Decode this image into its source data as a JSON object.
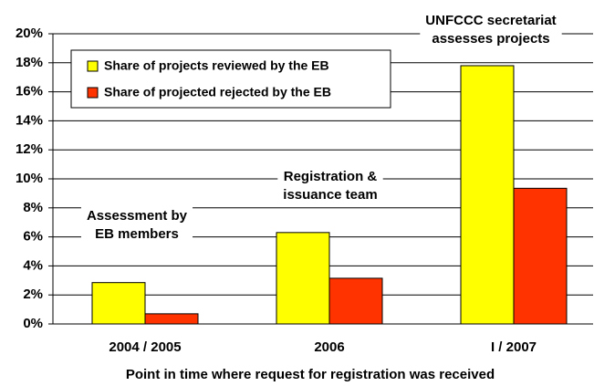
{
  "chart_data": {
    "type": "bar",
    "x_label": "Point in time where request for registration was received",
    "categories": [
      "2004 / 2005",
      "2006",
      "I / 2007"
    ],
    "series": [
      {
        "name": "Share of projects reviewed by the EB",
        "color": "#ffff00",
        "values": [
          2.85,
          6.3,
          17.8
        ]
      },
      {
        "name": "Share of projected rejected by the EB",
        "color": "#ff3300",
        "values": [
          0.7,
          3.15,
          9.35
        ]
      }
    ],
    "annotations": [
      [
        "Assessment  by",
        "EB members"
      ],
      [
        "Registration &",
        "issuance team"
      ],
      [
        "UNFCCC secretariat",
        "assesses projects"
      ]
    ],
    "ylim": [
      0,
      20
    ],
    "yticks": [
      {
        "value": 0,
        "label": "0%"
      },
      {
        "value": 2,
        "label": "2%"
      },
      {
        "value": 4,
        "label": "4%"
      },
      {
        "value": 6,
        "label": "6%"
      },
      {
        "value": 8,
        "label": "8%"
      },
      {
        "value": 10,
        "label": "10%"
      },
      {
        "value": 12,
        "label": "12%"
      },
      {
        "value": 14,
        "label": "14%"
      },
      {
        "value": 16,
        "label": "16%"
      },
      {
        "value": 18,
        "label": "18%"
      },
      {
        "value": 20,
        "label": "20%"
      }
    ],
    "grid": true
  }
}
